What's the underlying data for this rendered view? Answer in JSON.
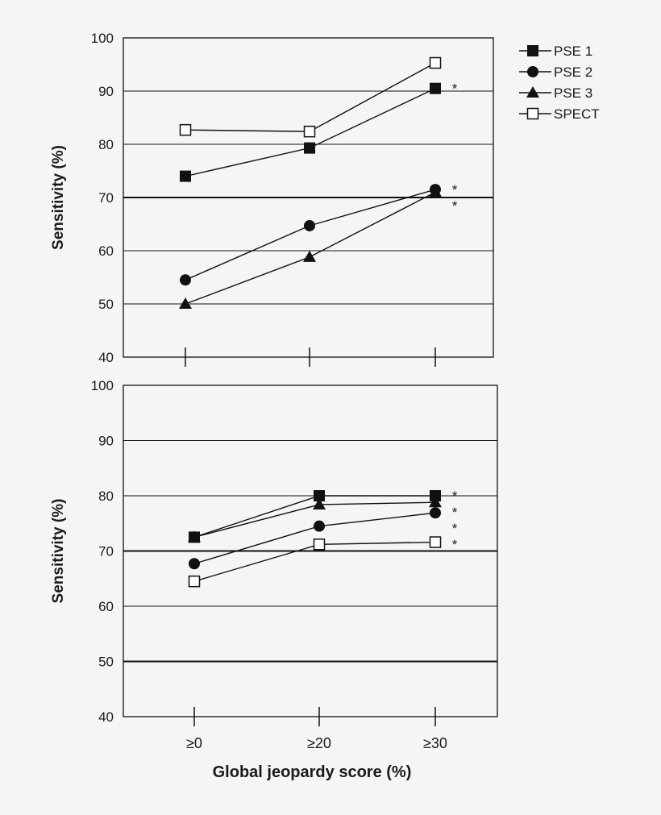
{
  "chart_data": [
    {
      "type": "line",
      "categories": [
        "≥0",
        "≥20",
        "≥30"
      ],
      "ylabel": "Sensitivity (%)",
      "xlabel": "",
      "ylim": [
        40,
        100
      ],
      "yticks": [
        40,
        50,
        60,
        70,
        80,
        90,
        100
      ],
      "grid": true,
      "emphasized_gridlines": [
        70
      ],
      "show_category_labels": false,
      "series": [
        {
          "name": "PSE 1",
          "marker": "filled-square",
          "values": [
            74,
            79.3,
            90.5
          ],
          "annotation": [
            "",
            "",
            "*"
          ]
        },
        {
          "name": "PSE 2",
          "marker": "filled-circle",
          "values": [
            54.5,
            64.7,
            71.5
          ],
          "annotation": [
            "",
            "",
            "*"
          ]
        },
        {
          "name": "PSE 3",
          "marker": "filled-triangle",
          "values": [
            50,
            58.8,
            71
          ],
          "annotation": [
            "",
            "",
            "*"
          ]
        },
        {
          "name": "SPECT",
          "marker": "open-square",
          "values": [
            82.7,
            82.4,
            95.3
          ],
          "annotation": [
            "",
            "",
            ""
          ]
        }
      ]
    },
    {
      "type": "line",
      "categories": [
        "≥0",
        "≥20",
        "≥30"
      ],
      "ylabel": "Sensitivity (%)",
      "xlabel": "Global jeopardy score (%)",
      "ylim": [
        40,
        100
      ],
      "yticks": [
        40,
        50,
        60,
        70,
        80,
        90,
        100
      ],
      "grid": true,
      "emphasized_gridlines": [
        50,
        70
      ],
      "show_category_labels": true,
      "series": [
        {
          "name": "PSE 1",
          "marker": "filled-square",
          "values": [
            72.5,
            80,
            80
          ],
          "annotation": [
            "",
            "",
            "*"
          ]
        },
        {
          "name": "PSE 2",
          "marker": "filled-circle",
          "values": [
            67.7,
            74.5,
            76.9
          ],
          "annotation": [
            "",
            "",
            "*"
          ]
        },
        {
          "name": "PSE 3",
          "marker": "filled-triangle",
          "values": [
            72.5,
            78.4,
            78.8
          ],
          "annotation": [
            "",
            "",
            "*"
          ]
        },
        {
          "name": "SPECT",
          "marker": "open-square",
          "values": [
            64.5,
            71.2,
            71.6
          ],
          "annotation": [
            "",
            "",
            "*"
          ]
        }
      ]
    }
  ],
  "legend": {
    "placement": "top-right",
    "items": [
      "PSE 1",
      "PSE 2",
      "PSE 3",
      "SPECT"
    ]
  }
}
